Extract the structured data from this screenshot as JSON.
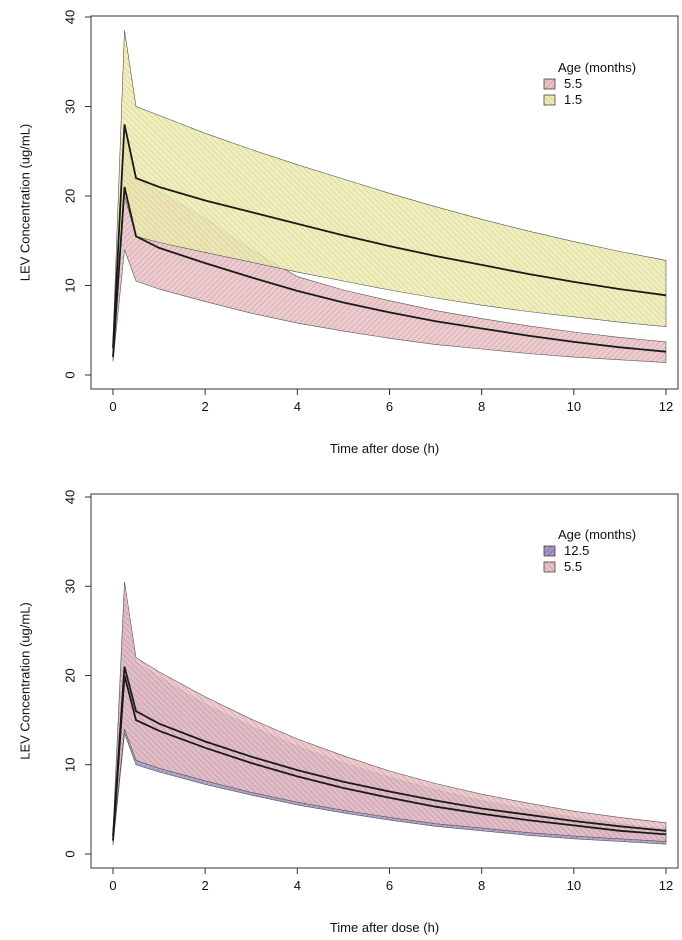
{
  "chart_data": [
    {
      "type": "area",
      "xlabel": "Time after dose (h)",
      "ylabel": "LEV Concentration (ug/mL)",
      "xlim": [
        0,
        12
      ],
      "ylim": [
        0,
        40
      ],
      "xticks": [
        "0",
        "2",
        "4",
        "6",
        "8",
        "10",
        "12"
      ],
      "yticks": [
        "0",
        "10",
        "20",
        "30",
        "40"
      ],
      "legend": {
        "title": "Age (months)",
        "placement": "top-right"
      },
      "series": [
        {
          "name": "5.5",
          "fill": "#e8c2c6",
          "hatch": "#c4868c",
          "line": "#1a1a1a",
          "t": [
            0,
            0.25,
            0.5,
            1,
            2,
            3,
            4,
            5,
            6,
            7,
            8,
            9,
            10,
            11,
            12
          ],
          "median": [
            2,
            21,
            15.5,
            14.2,
            12.5,
            10.9,
            9.4,
            8.1,
            7.0,
            6.0,
            5.2,
            4.4,
            3.7,
            3.1,
            2.6
          ],
          "lower": [
            1.5,
            14,
            10.5,
            9.6,
            8.2,
            6.9,
            5.8,
            4.9,
            4.1,
            3.4,
            2.9,
            2.4,
            2.0,
            1.7,
            1.4
          ],
          "upper": [
            2.5,
            28,
            22,
            20.5,
            17.5,
            14.0,
            11.0,
            9.5,
            8.3,
            7.2,
            6.3,
            5.5,
            4.8,
            4.2,
            3.7
          ]
        },
        {
          "name": "1.5",
          "fill": "#ecebb2",
          "hatch": "#c9c67a",
          "line": "#1a1a1a",
          "t": [
            0,
            0.25,
            0.5,
            1,
            2,
            3,
            4,
            5,
            6,
            7,
            8,
            9,
            10,
            11,
            12
          ],
          "median": [
            3,
            28,
            22,
            21,
            19.5,
            18.2,
            16.9,
            15.6,
            14.4,
            13.3,
            12.3,
            11.3,
            10.4,
            9.6,
            8.9
          ],
          "lower": [
            2,
            20,
            15.5,
            14.8,
            13.7,
            12.6,
            11.5,
            10.5,
            9.5,
            8.6,
            7.8,
            7.1,
            6.5,
            5.9,
            5.4
          ],
          "upper": [
            4,
            38.5,
            30,
            29,
            27,
            25.2,
            23.5,
            21.9,
            20.3,
            18.8,
            17.4,
            16.1,
            14.9,
            13.8,
            12.8
          ]
        }
      ]
    },
    {
      "type": "area",
      "xlabel": "Time after dose (h)",
      "ylabel": "LEV Concentration (ug/mL)",
      "xlim": [
        0,
        12
      ],
      "ylim": [
        0,
        40
      ],
      "xticks": [
        "0",
        "2",
        "4",
        "6",
        "8",
        "10",
        "12"
      ],
      "yticks": [
        "0",
        "10",
        "20",
        "30",
        "40"
      ],
      "legend": {
        "title": "Age (months)",
        "placement": "top-right"
      },
      "series": [
        {
          "name": "12.5",
          "fill": "#a796c4",
          "hatch": "#6d5b95",
          "line": "#1a1a1a",
          "t": [
            0,
            0.25,
            0.5,
            1,
            2,
            3,
            4,
            5,
            6,
            7,
            8,
            9,
            10,
            11,
            12
          ],
          "median": [
            1.5,
            20,
            15,
            13.8,
            11.9,
            10.2,
            8.7,
            7.4,
            6.3,
            5.3,
            4.5,
            3.8,
            3.2,
            2.6,
            2.2
          ],
          "lower": [
            1,
            13.5,
            10,
            9.2,
            7.8,
            6.6,
            5.5,
            4.6,
            3.8,
            3.1,
            2.6,
            2.1,
            1.7,
            1.4,
            1.1
          ],
          "upper": [
            2,
            29,
            21.5,
            19.8,
            16.8,
            14.3,
            12.1,
            10.2,
            8.6,
            7.2,
            6.0,
            5.0,
            4.1,
            3.4,
            2.8
          ]
        },
        {
          "name": "5.5",
          "fill": "#e8c2c6",
          "hatch": "#c4868c",
          "line": "#1a1a1a",
          "t": [
            0,
            0.25,
            0.5,
            1,
            2,
            3,
            4,
            5,
            6,
            7,
            8,
            9,
            10,
            11,
            12
          ],
          "median": [
            2,
            21,
            16,
            14.6,
            12.6,
            10.9,
            9.4,
            8.1,
            7.0,
            6.0,
            5.1,
            4.4,
            3.7,
            3.1,
            2.6
          ],
          "lower": [
            1.5,
            14,
            10.5,
            9.6,
            8.2,
            6.9,
            5.8,
            4.9,
            4.1,
            3.4,
            2.9,
            2.4,
            2.0,
            1.7,
            1.4
          ],
          "upper": [
            2.5,
            30.5,
            22,
            20.4,
            17.6,
            15.1,
            12.9,
            11.0,
            9.3,
            7.9,
            6.7,
            5.7,
            4.8,
            4.1,
            3.5
          ]
        }
      ]
    }
  ]
}
